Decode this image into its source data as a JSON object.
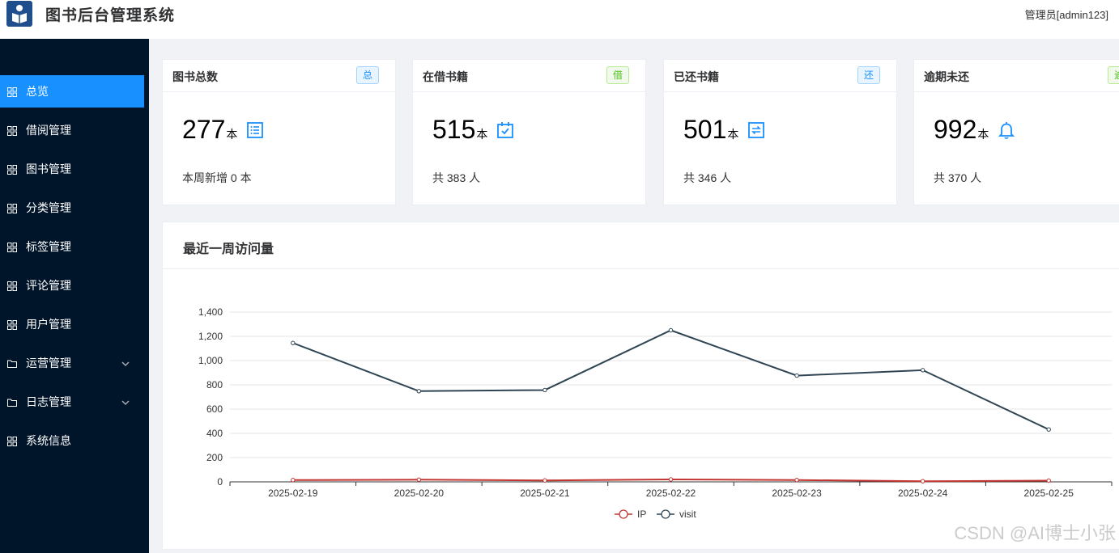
{
  "header": {
    "title": "图书后台管理系统",
    "user": "管理员[admin123]"
  },
  "sidebar": {
    "items": [
      {
        "label": "总览",
        "active": true,
        "icon": "grid-icon"
      },
      {
        "label": "借阅管理",
        "icon": "grid-icon"
      },
      {
        "label": "图书管理",
        "icon": "grid-icon"
      },
      {
        "label": "分类管理",
        "icon": "grid-icon"
      },
      {
        "label": "标签管理",
        "icon": "grid-icon"
      },
      {
        "label": "评论管理",
        "icon": "grid-icon"
      },
      {
        "label": "用户管理",
        "icon": "grid-icon"
      },
      {
        "label": "运营管理",
        "icon": "folder-icon",
        "expandable": true
      },
      {
        "label": "日志管理",
        "icon": "folder-icon",
        "expandable": true
      },
      {
        "label": "系统信息",
        "icon": "grid-icon"
      }
    ]
  },
  "cards": [
    {
      "title": "图书总数",
      "tag": "总",
      "value": "277",
      "unit": "本",
      "foot": "本周新增 0 本",
      "icon": "list-icon"
    },
    {
      "title": "在借书籍",
      "tag": "借",
      "value": "515",
      "unit": "本",
      "foot": "共 383 人",
      "icon": "calendar-check-icon"
    },
    {
      "title": "已还书籍",
      "tag": "还",
      "value": "501",
      "unit": "本",
      "foot": "共 346 人",
      "icon": "refresh-icon"
    },
    {
      "title": "逾期未还",
      "tag": "逾",
      "value": "992",
      "unit": "本",
      "foot": "共 370 人",
      "icon": "bell-icon"
    }
  ],
  "colors": {
    "accent": "#1890ff",
    "sidebar": "#001529",
    "ip_line": "#c23531",
    "visit_line": "#2f4554"
  },
  "chart": {
    "title": "最近一周访问量"
  },
  "chart_data": {
    "type": "line",
    "categories": [
      "2025-02-19",
      "2025-02-20",
      "2025-02-21",
      "2025-02-22",
      "2025-02-23",
      "2025-02-24",
      "2025-02-25"
    ],
    "series": [
      {
        "name": "IP",
        "values": [
          15,
          18,
          12,
          20,
          15,
          5,
          10
        ]
      },
      {
        "name": "visit",
        "values": [
          1145,
          748,
          757,
          1250,
          876,
          921,
          432
        ]
      }
    ],
    "yticks": [
      "0",
      "200",
      "400",
      "600",
      "800",
      "1,000",
      "1,200",
      "1,400"
    ],
    "ylim": [
      0,
      1400
    ],
    "grid": true,
    "legend": "bottom-center"
  },
  "watermark": "CSDN @AI博士小张"
}
